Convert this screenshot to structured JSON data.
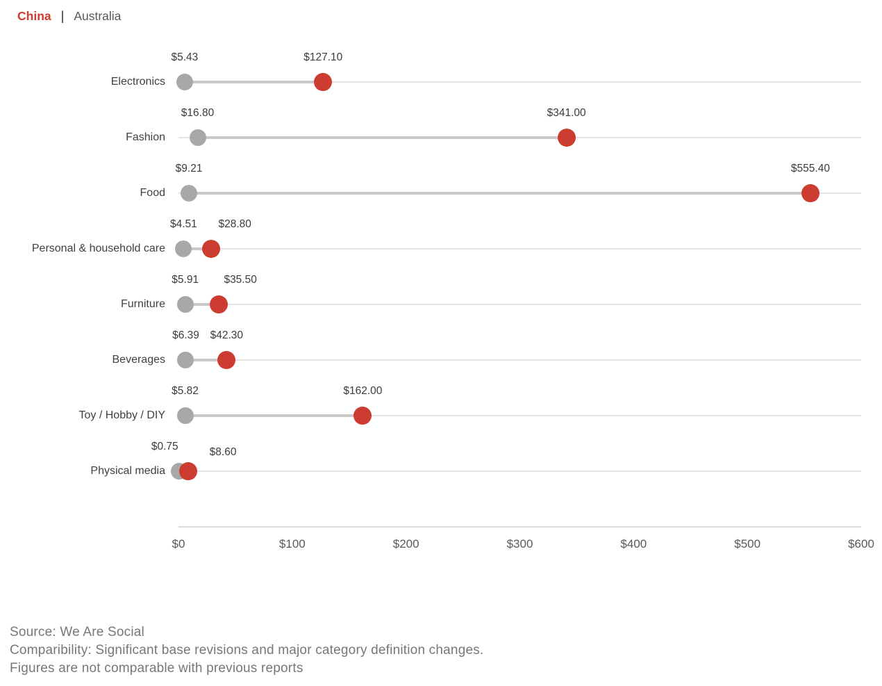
{
  "legend": {
    "separator": "|",
    "items": [
      {
        "label": "China",
        "color": "#d13a2e"
      },
      {
        "label": "Australia",
        "color": "#595959"
      }
    ]
  },
  "chart_data": {
    "type": "dumbbell",
    "categories": [
      "Electronics",
      "Fashion",
      "Food",
      "Personal & household care",
      "Furniture",
      "Beverages",
      "Toy / Hobby / DIY",
      "Physical media"
    ],
    "series": [
      {
        "name": "Australia",
        "color": "#a8a8a8",
        "values": [
          5.43,
          16.8,
          9.21,
          4.51,
          5.91,
          6.39,
          5.82,
          0.75
        ],
        "labels": [
          "$5.43",
          "$16.80",
          "$9.21",
          "$4.51",
          "$5.91",
          "$6.39",
          "$5.82",
          "$0.75"
        ],
        "label_dx": [
          0,
          0,
          0,
          0,
          0,
          0,
          0,
          -21
        ],
        "label_dy": [
          0,
          0,
          0,
          0,
          0,
          0,
          0,
          0
        ]
      },
      {
        "name": "China",
        "color": "#cd3c30",
        "values": [
          127.1,
          341.0,
          555.4,
          28.8,
          35.5,
          42.3,
          162.0,
          8.6
        ],
        "labels": [
          "$127.10",
          "$341.00",
          "$555.40",
          "$28.80",
          "$35.50",
          "$42.30",
          "$162.00",
          "$8.60"
        ],
        "label_dx": [
          0,
          0,
          0,
          34,
          31,
          0,
          0,
          50
        ],
        "label_dy": [
          0,
          0,
          0,
          0,
          0,
          0,
          0,
          8
        ]
      }
    ],
    "xlim": [
      0,
      600
    ],
    "x_ticks": [
      "$0",
      "$100",
      "$200",
      "$300",
      "$400",
      "$500",
      "$600"
    ],
    "grid": false,
    "legend_position": "top-left",
    "track_color": "#e4e4e4",
    "connector_color": "#c9c9c9"
  },
  "footer": {
    "lines": [
      "Source: We Are Social",
      "Comparibility: Significant base revisions and major category definition changes.",
      "Figures are not comparable with previous reports"
    ]
  }
}
